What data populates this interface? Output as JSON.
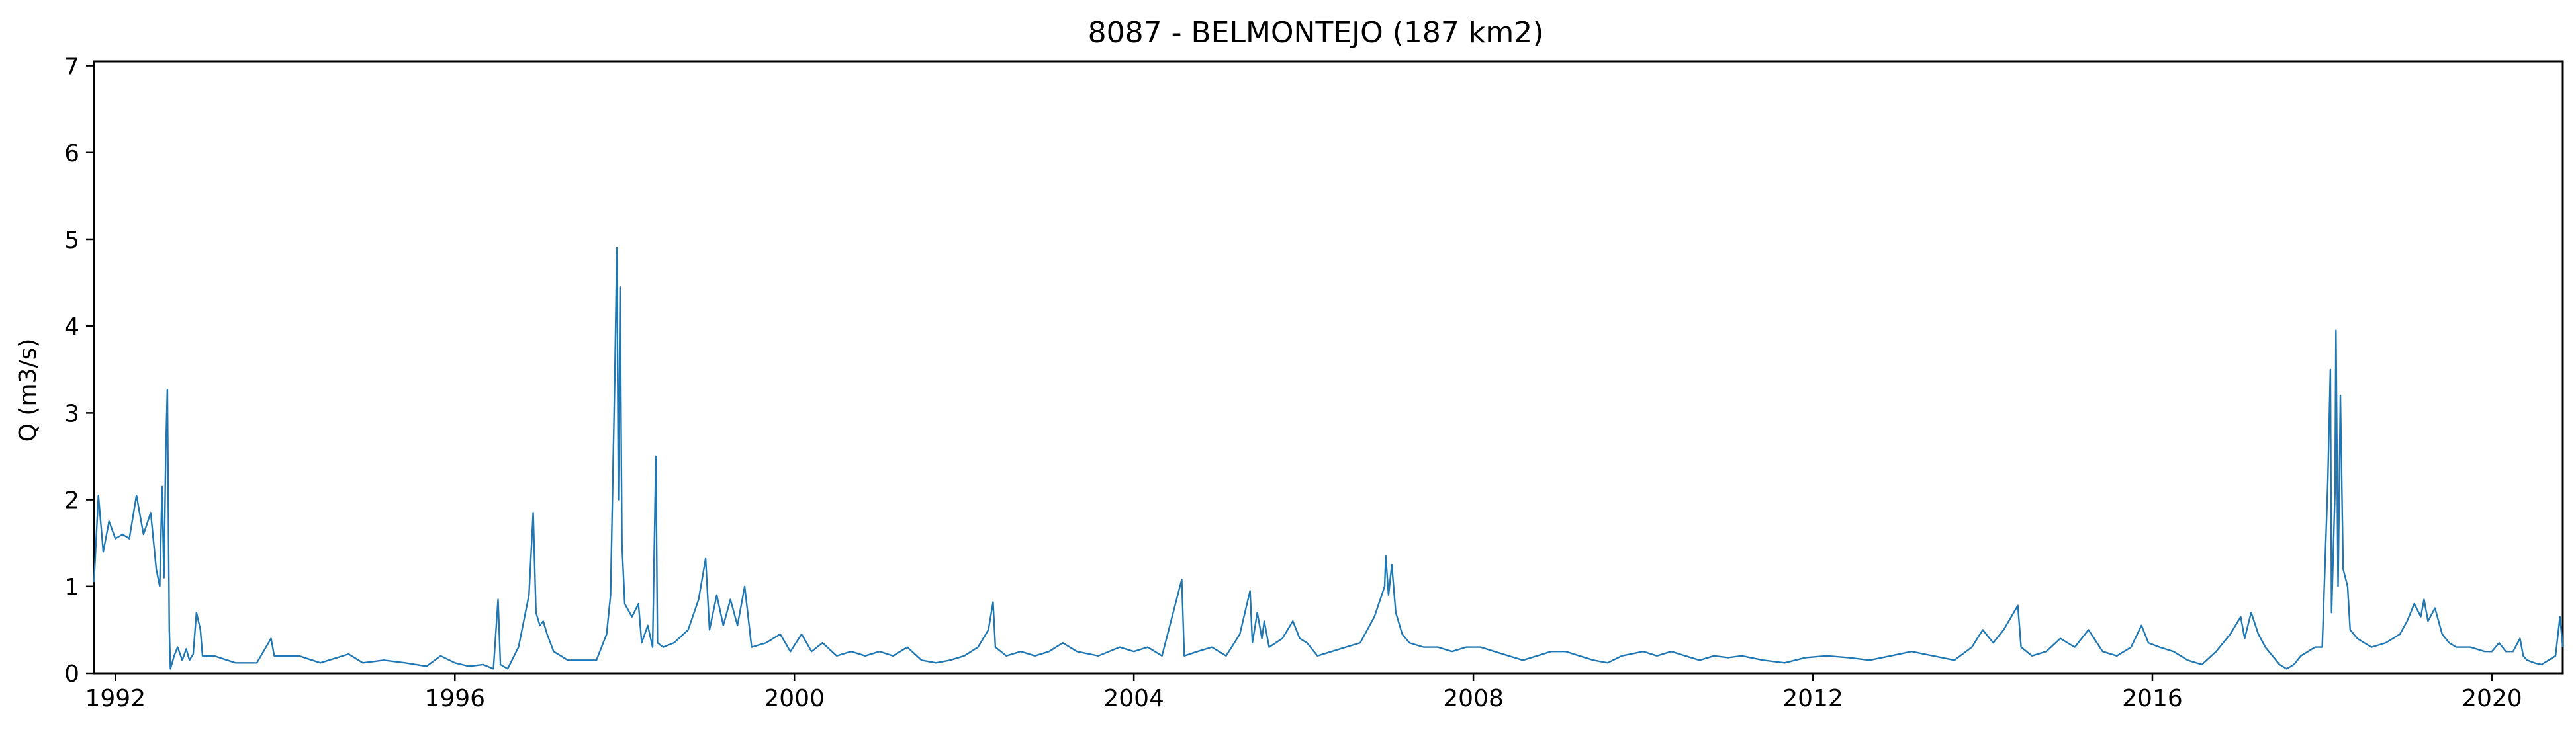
{
  "chart_data": {
    "type": "line",
    "title": "8087 - BELMONTEJO (187 km2)",
    "xlabel": "",
    "ylabel": "Q (m3/s)",
    "xlim": [
      "1991-10-01",
      "2020-11-01"
    ],
    "ylim": [
      0,
      7.05
    ],
    "grid": false,
    "x_ticks": [
      "1992",
      "1996",
      "2000",
      "2004",
      "2008",
      "2012",
      "2016",
      "2020"
    ],
    "y_ticks": [
      "0",
      "1",
      "2",
      "3",
      "4",
      "5",
      "6",
      "7"
    ],
    "line_color": "#1f77b4",
    "series": [
      {
        "points": [
          [
            "1991-10-01",
            1.05
          ],
          [
            "1991-10-20",
            2.05
          ],
          [
            "1991-11-10",
            1.4
          ],
          [
            "1991-12-05",
            1.75
          ],
          [
            "1992-01-01",
            1.55
          ],
          [
            "1992-02-01",
            1.6
          ],
          [
            "1992-03-01",
            1.55
          ],
          [
            "1992-04-01",
            2.05
          ],
          [
            "1992-05-01",
            1.6
          ],
          [
            "1992-06-01",
            1.85
          ],
          [
            "1992-06-25",
            1.2
          ],
          [
            "1992-07-10",
            1.0
          ],
          [
            "1992-07-20",
            2.15
          ],
          [
            "1992-07-28",
            1.1
          ],
          [
            "1992-08-05",
            2.55
          ],
          [
            "1992-08-12",
            3.27
          ],
          [
            "1992-08-20",
            0.5
          ],
          [
            "1992-08-25",
            0.05
          ],
          [
            "1992-09-10",
            0.2
          ],
          [
            "1992-09-25",
            0.3
          ],
          [
            "1992-10-15",
            0.15
          ],
          [
            "1992-11-01",
            0.28
          ],
          [
            "1992-11-15",
            0.15
          ],
          [
            "1992-12-01",
            0.22
          ],
          [
            "1992-12-15",
            0.7
          ],
          [
            "1993-01-01",
            0.5
          ],
          [
            "1993-01-10",
            0.2
          ],
          [
            "1993-03-01",
            0.2
          ],
          [
            "1993-06-01",
            0.12
          ],
          [
            "1993-09-01",
            0.12
          ],
          [
            "1993-11-01",
            0.4
          ],
          [
            "1993-11-15",
            0.2
          ],
          [
            "1994-03-01",
            0.2
          ],
          [
            "1994-06-01",
            0.12
          ],
          [
            "1994-10-01",
            0.22
          ],
          [
            "1994-12-01",
            0.12
          ],
          [
            "1995-03-01",
            0.15
          ],
          [
            "1995-06-01",
            0.12
          ],
          [
            "1995-09-01",
            0.08
          ],
          [
            "1995-11-01",
            0.2
          ],
          [
            "1996-01-01",
            0.12
          ],
          [
            "1996-03-01",
            0.08
          ],
          [
            "1996-05-01",
            0.1
          ],
          [
            "1996-06-15",
            0.05
          ],
          [
            "1996-07-05",
            0.85
          ],
          [
            "1996-07-15",
            0.1
          ],
          [
            "1996-08-15",
            0.05
          ],
          [
            "1996-10-01",
            0.3
          ],
          [
            "1996-11-15",
            0.9
          ],
          [
            "1996-12-03",
            1.85
          ],
          [
            "1996-12-15",
            0.7
          ],
          [
            "1997-01-01",
            0.55
          ],
          [
            "1997-01-15",
            0.6
          ],
          [
            "1997-02-01",
            0.45
          ],
          [
            "1997-03-01",
            0.25
          ],
          [
            "1997-05-01",
            0.15
          ],
          [
            "1997-07-01",
            0.15
          ],
          [
            "1997-09-01",
            0.15
          ],
          [
            "1997-10-15",
            0.45
          ],
          [
            "1997-11-01",
            0.9
          ],
          [
            "1997-11-20",
            3.5
          ],
          [
            "1997-11-28",
            4.9
          ],
          [
            "1997-12-05",
            2.0
          ],
          [
            "1997-12-12",
            4.45
          ],
          [
            "1997-12-20",
            1.5
          ],
          [
            "1998-01-01",
            0.8
          ],
          [
            "1998-02-01",
            0.65
          ],
          [
            "1998-03-01",
            0.8
          ],
          [
            "1998-03-15",
            0.35
          ],
          [
            "1998-04-10",
            0.55
          ],
          [
            "1998-05-01",
            0.3
          ],
          [
            "1998-05-15",
            2.5
          ],
          [
            "1998-05-22",
            0.35
          ],
          [
            "1998-06-15",
            0.3
          ],
          [
            "1998-08-01",
            0.35
          ],
          [
            "1998-10-01",
            0.5
          ],
          [
            "1998-11-15",
            0.85
          ],
          [
            "1998-12-15",
            1.32
          ],
          [
            "1999-01-01",
            0.5
          ],
          [
            "1999-02-01",
            0.9
          ],
          [
            "1999-03-01",
            0.55
          ],
          [
            "1999-04-01",
            0.85
          ],
          [
            "1999-05-01",
            0.55
          ],
          [
            "1999-06-01",
            1.0
          ],
          [
            "1999-07-01",
            0.3
          ],
          [
            "1999-09-01",
            0.35
          ],
          [
            "1999-11-01",
            0.45
          ],
          [
            "1999-12-15",
            0.25
          ],
          [
            "2000-02-01",
            0.45
          ],
          [
            "2000-03-15",
            0.25
          ],
          [
            "2000-05-01",
            0.35
          ],
          [
            "2000-07-01",
            0.2
          ],
          [
            "2000-09-01",
            0.25
          ],
          [
            "2000-11-01",
            0.2
          ],
          [
            "2001-01-01",
            0.25
          ],
          [
            "2001-03-01",
            0.2
          ],
          [
            "2001-05-01",
            0.3
          ],
          [
            "2001-07-01",
            0.15
          ],
          [
            "2001-09-01",
            0.12
          ],
          [
            "2001-11-01",
            0.15
          ],
          [
            "2002-01-01",
            0.2
          ],
          [
            "2002-03-01",
            0.3
          ],
          [
            "2002-04-15",
            0.5
          ],
          [
            "2002-05-05",
            0.82
          ],
          [
            "2002-05-15",
            0.3
          ],
          [
            "2002-07-01",
            0.2
          ],
          [
            "2002-09-01",
            0.25
          ],
          [
            "2002-11-01",
            0.2
          ],
          [
            "2003-01-01",
            0.25
          ],
          [
            "2003-03-01",
            0.35
          ],
          [
            "2003-05-01",
            0.25
          ],
          [
            "2003-08-01",
            0.2
          ],
          [
            "2003-11-01",
            0.3
          ],
          [
            "2004-01-01",
            0.25
          ],
          [
            "2004-03-01",
            0.3
          ],
          [
            "2004-05-01",
            0.2
          ],
          [
            "2004-07-25",
            1.08
          ],
          [
            "2004-08-05",
            0.2
          ],
          [
            "2004-10-01",
            0.25
          ],
          [
            "2004-12-01",
            0.3
          ],
          [
            "2005-02-01",
            0.2
          ],
          [
            "2005-04-01",
            0.45
          ],
          [
            "2005-05-15",
            0.95
          ],
          [
            "2005-05-25",
            0.35
          ],
          [
            "2005-06-15",
            0.7
          ],
          [
            "2005-07-05",
            0.4
          ],
          [
            "2005-07-15",
            0.6
          ],
          [
            "2005-08-05",
            0.3
          ],
          [
            "2005-10-01",
            0.4
          ],
          [
            "2005-11-15",
            0.6
          ],
          [
            "2005-12-15",
            0.4
          ],
          [
            "2006-01-15",
            0.35
          ],
          [
            "2006-03-01",
            0.2
          ],
          [
            "2006-05-01",
            0.25
          ],
          [
            "2006-07-01",
            0.3
          ],
          [
            "2006-09-01",
            0.35
          ],
          [
            "2006-11-01",
            0.65
          ],
          [
            "2006-12-15",
            1.0
          ],
          [
            "2006-12-20",
            1.35
          ],
          [
            "2007-01-01",
            0.9
          ],
          [
            "2007-01-15",
            1.25
          ],
          [
            "2007-02-01",
            0.7
          ],
          [
            "2007-03-01",
            0.45
          ],
          [
            "2007-04-01",
            0.35
          ],
          [
            "2007-06-01",
            0.3
          ],
          [
            "2007-08-01",
            0.3
          ],
          [
            "2007-10-01",
            0.25
          ],
          [
            "2007-12-01",
            0.3
          ],
          [
            "2008-02-01",
            0.3
          ],
          [
            "2008-04-01",
            0.25
          ],
          [
            "2008-06-01",
            0.2
          ],
          [
            "2008-08-01",
            0.15
          ],
          [
            "2008-10-01",
            0.2
          ],
          [
            "2008-12-01",
            0.25
          ],
          [
            "2009-02-01",
            0.25
          ],
          [
            "2009-04-01",
            0.2
          ],
          [
            "2009-06-01",
            0.15
          ],
          [
            "2009-08-01",
            0.12
          ],
          [
            "2009-10-01",
            0.2
          ],
          [
            "2010-01-01",
            0.25
          ],
          [
            "2010-03-01",
            0.2
          ],
          [
            "2010-05-01",
            0.25
          ],
          [
            "2010-07-01",
            0.2
          ],
          [
            "2010-09-01",
            0.15
          ],
          [
            "2010-11-01",
            0.2
          ],
          [
            "2011-01-01",
            0.18
          ],
          [
            "2011-03-01",
            0.2
          ],
          [
            "2011-06-01",
            0.15
          ],
          [
            "2011-09-01",
            0.12
          ],
          [
            "2011-12-01",
            0.18
          ],
          [
            "2012-03-01",
            0.2
          ],
          [
            "2012-06-01",
            0.18
          ],
          [
            "2012-09-01",
            0.15
          ],
          [
            "2012-12-01",
            0.2
          ],
          [
            "2013-03-01",
            0.25
          ],
          [
            "2013-06-01",
            0.2
          ],
          [
            "2013-09-01",
            0.15
          ],
          [
            "2013-11-15",
            0.3
          ],
          [
            "2014-01-01",
            0.5
          ],
          [
            "2014-02-15",
            0.35
          ],
          [
            "2014-04-01",
            0.5
          ],
          [
            "2014-06-01",
            0.78
          ],
          [
            "2014-06-15",
            0.3
          ],
          [
            "2014-08-01",
            0.2
          ],
          [
            "2014-10-01",
            0.25
          ],
          [
            "2014-12-01",
            0.4
          ],
          [
            "2015-02-01",
            0.3
          ],
          [
            "2015-04-01",
            0.5
          ],
          [
            "2015-06-01",
            0.25
          ],
          [
            "2015-08-01",
            0.2
          ],
          [
            "2015-10-01",
            0.3
          ],
          [
            "2015-11-15",
            0.55
          ],
          [
            "2015-12-15",
            0.35
          ],
          [
            "2016-02-01",
            0.3
          ],
          [
            "2016-04-01",
            0.25
          ],
          [
            "2016-06-01",
            0.15
          ],
          [
            "2016-08-01",
            0.1
          ],
          [
            "2016-10-01",
            0.25
          ],
          [
            "2016-12-01",
            0.45
          ],
          [
            "2017-01-15",
            0.65
          ],
          [
            "2017-02-01",
            0.4
          ],
          [
            "2017-03-01",
            0.7
          ],
          [
            "2017-04-01",
            0.45
          ],
          [
            "2017-05-01",
            0.3
          ],
          [
            "2017-06-01",
            0.2
          ],
          [
            "2017-07-01",
            0.1
          ],
          [
            "2017-08-01",
            0.05
          ],
          [
            "2017-09-01",
            0.1
          ],
          [
            "2017-10-01",
            0.2
          ],
          [
            "2017-12-01",
            0.3
          ],
          [
            "2018-01-01",
            0.3
          ],
          [
            "2018-01-25",
            2.2
          ],
          [
            "2018-02-05",
            3.5
          ],
          [
            "2018-02-10",
            0.7
          ],
          [
            "2018-02-25",
            2.1
          ],
          [
            "2018-03-01",
            3.95
          ],
          [
            "2018-03-10",
            1.0
          ],
          [
            "2018-03-20",
            3.2
          ],
          [
            "2018-04-01",
            1.2
          ],
          [
            "2018-04-20",
            1.0
          ],
          [
            "2018-05-01",
            0.5
          ],
          [
            "2018-06-01",
            0.4
          ],
          [
            "2018-07-01",
            0.35
          ],
          [
            "2018-08-01",
            0.3
          ],
          [
            "2018-10-01",
            0.35
          ],
          [
            "2018-12-01",
            0.45
          ],
          [
            "2019-01-01",
            0.6
          ],
          [
            "2019-02-01",
            0.8
          ],
          [
            "2019-03-01",
            0.65
          ],
          [
            "2019-03-15",
            0.85
          ],
          [
            "2019-04-01",
            0.6
          ],
          [
            "2019-05-01",
            0.75
          ],
          [
            "2019-06-01",
            0.45
          ],
          [
            "2019-07-01",
            0.35
          ],
          [
            "2019-08-01",
            0.3
          ],
          [
            "2019-10-01",
            0.3
          ],
          [
            "2019-12-01",
            0.25
          ],
          [
            "2020-01-01",
            0.25
          ],
          [
            "2020-02-01",
            0.35
          ],
          [
            "2020-03-01",
            0.25
          ],
          [
            "2020-04-01",
            0.25
          ],
          [
            "2020-05-01",
            0.4
          ],
          [
            "2020-05-15",
            0.2
          ],
          [
            "2020-06-01",
            0.15
          ],
          [
            "2020-07-01",
            0.12
          ],
          [
            "2020-08-01",
            0.1
          ],
          [
            "2020-09-01",
            0.15
          ],
          [
            "2020-10-01",
            0.2
          ],
          [
            "2020-10-20",
            0.65
          ],
          [
            "2020-11-01",
            0.3
          ]
        ]
      }
    ]
  }
}
